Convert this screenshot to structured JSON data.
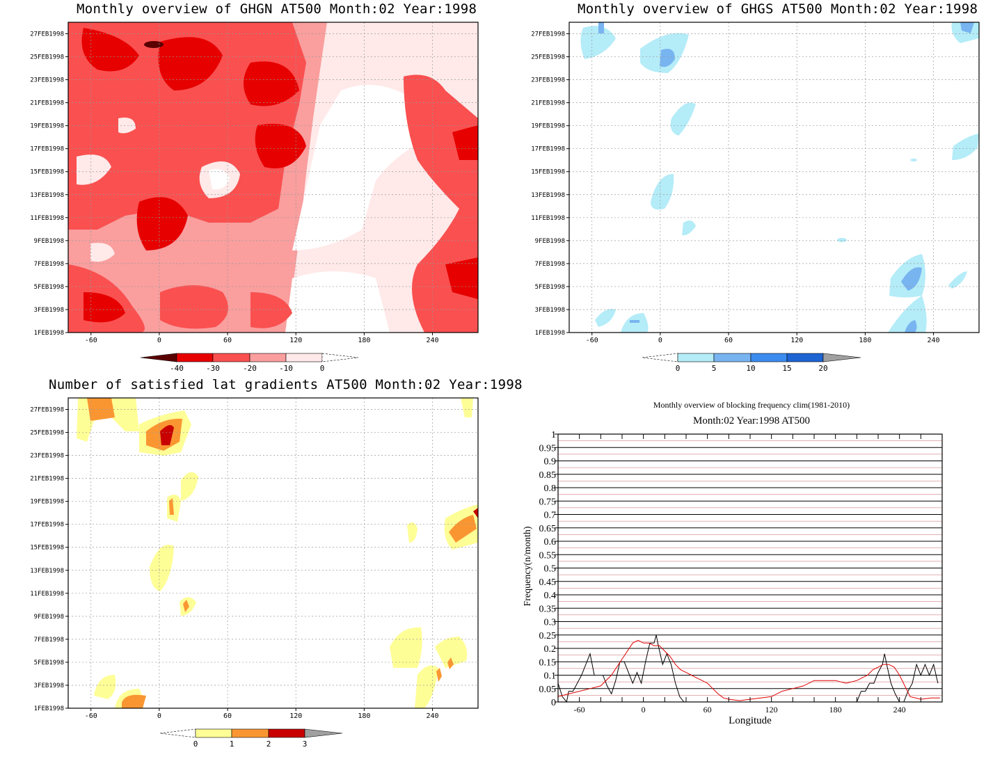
{
  "charts": {
    "ghgn": {
      "title": "Monthly overview of GHGN AT500 Month:02 Year:1998",
      "ytick_labels": [
        "1FEB1998",
        "3FEB1998",
        "5FEB1998",
        "7FEB1998",
        "9FEB1998",
        "11FEB1998",
        "13FEB1998",
        "15FEB1998",
        "17FEB1998",
        "19FEB1998",
        "21FEB1998",
        "23FEB1998",
        "25FEB1998",
        "27FEB1998"
      ],
      "xtick_labels": [
        "-60",
        "0",
        "60",
        "120",
        "180",
        "240"
      ],
      "colorbar_labels": [
        "-40",
        "-30",
        "-20",
        "-10",
        "0"
      ]
    },
    "ghgs": {
      "title": "Monthly overview of GHGS AT500 Month:02 Year:1998",
      "ytick_labels": [
        "1FEB1998",
        "3FEB1998",
        "5FEB1998",
        "7FEB1998",
        "9FEB1998",
        "11FEB1998",
        "13FEB1998",
        "15FEB1998",
        "17FEB1998",
        "19FEB1998",
        "21FEB1998",
        "23FEB1998",
        "25FEB1998",
        "27FEB1998"
      ],
      "xtick_labels": [
        "-60",
        "0",
        "60",
        "120",
        "180",
        "240"
      ],
      "colorbar_labels": [
        "0",
        "5",
        "10",
        "15",
        "20"
      ]
    },
    "latgrad": {
      "title": "Number of satisfied lat gradients AT500 Month:02 Year:1998",
      "ytick_labels": [
        "1FEB1998",
        "3FEB1998",
        "5FEB1998",
        "7FEB1998",
        "9FEB1998",
        "11FEB1998",
        "13FEB1998",
        "15FEB1998",
        "17FEB1998",
        "19FEB1998",
        "21FEB1998",
        "23FEB1998",
        "25FEB1998",
        "27FEB1998"
      ],
      "xtick_labels": [
        "-60",
        "0",
        "60",
        "120",
        "180",
        "240"
      ],
      "colorbar_labels": [
        "0",
        "1",
        "2",
        "3"
      ]
    },
    "freq": {
      "title": "Monthly overview of blocking frequency clim(1981-2010)",
      "subtitle": "Month:02 Year:1998  AT500",
      "xlabel": "Longitude",
      "ylabel": "Frequency(n/month)",
      "xtick_labels": [
        "-60",
        "0",
        "60",
        "120",
        "180",
        "240"
      ],
      "ytick_labels": [
        "0",
        "0.05",
        "0.1",
        "0.15",
        "0.2",
        "0.25",
        "0.3",
        "0.35",
        "0.4",
        "0.45",
        "0.5",
        "0.55",
        "0.6",
        "0.65",
        "0.7",
        "0.75",
        "0.8",
        "0.85",
        "0.9",
        "0.95",
        "1"
      ]
    }
  },
  "chart_data": [
    {
      "type": "heatmap",
      "title": "Monthly overview of GHGN AT500 Month:02 Year:1998",
      "x_axis": "longitude",
      "xlim": [
        -80,
        280
      ],
      "y_axis": "date",
      "ylim": [
        "1FEB1998",
        "28FEB1998"
      ],
      "levels": [
        -40,
        -30,
        -20,
        -10,
        0
      ],
      "colors": [
        "#5a0000",
        "#e60000",
        "#fa5050",
        "#fa9e9e",
        "#ffe9e9",
        "#ffffff"
      ],
      "description_values": "mostly -30 to -10 west of 150E, -10 to 0 between 150E and 230E"
    },
    {
      "type": "heatmap",
      "title": "Monthly overview of GHGS AT500 Month:02 Year:1998",
      "x_axis": "longitude",
      "xlim": [
        -80,
        280
      ],
      "y_axis": "date",
      "ylim": [
        "1FEB1998",
        "28FEB1998"
      ],
      "levels": [
        0,
        5,
        10,
        15,
        20
      ],
      "colors": [
        "#b4ecf8",
        "#78b4f0",
        "#3c8cf0",
        "#1e64d2",
        "#a0a0a0"
      ]
    },
    {
      "type": "heatmap",
      "title": "Number of satisfied lat gradients AT500 Month:02 Year:1998",
      "x_axis": "longitude",
      "xlim": [
        -80,
        280
      ],
      "y_axis": "date",
      "ylim": [
        "1FEB1998",
        "28FEB1998"
      ],
      "levels": [
        0,
        1,
        2,
        3
      ],
      "colors": [
        "#fefe96",
        "#fa9632",
        "#c80000",
        "#a0a0a0"
      ]
    },
    {
      "type": "line",
      "title": "Monthly overview of blocking frequency clim(1981-2010)",
      "subtitle": "Month:02 Year:1998  AT500",
      "xlabel": "Longitude",
      "ylabel": "Frequency(n/month)",
      "xlim": [
        -80,
        280
      ],
      "ylim": [
        0,
        1
      ],
      "grid": true,
      "series": [
        {
          "color": "#000000",
          "x": [
            -80,
            -76,
            -72,
            -70,
            -66,
            -62,
            -58,
            -54,
            -50,
            -46,
            -42,
            -38,
            -34,
            -30,
            -26,
            -22,
            -18,
            -14,
            -10,
            -6,
            -2,
            2,
            6,
            10,
            12,
            14,
            18,
            22,
            26,
            30,
            34,
            38,
            200,
            204,
            208,
            212,
            216,
            220,
            224,
            226,
            228,
            232,
            236,
            240,
            244,
            248,
            252,
            256,
            260,
            264,
            268,
            272,
            276
          ],
          "y": [
            0.07,
            0.02,
            0.0,
            0.04,
            0.04,
            0.07,
            0.1,
            0.14,
            0.18,
            0.1,
            0.1,
            0.1,
            0.06,
            0.03,
            0.08,
            0.15,
            0.15,
            0.11,
            0.07,
            0.11,
            0.07,
            0.15,
            0.22,
            0.22,
            0.25,
            0.21,
            0.14,
            0.18,
            0.14,
            0.07,
            0.02,
            0.0,
            0.0,
            0.04,
            0.04,
            0.07,
            0.07,
            0.11,
            0.14,
            0.18,
            0.14,
            0.07,
            0.03,
            0.0,
            0.0,
            0.04,
            0.07,
            0.14,
            0.1,
            0.14,
            0.1,
            0.14,
            0.07
          ]
        },
        {
          "color": "#e00000",
          "x": [
            -80,
            -70,
            -60,
            -50,
            -40,
            -30,
            -20,
            -10,
            -5,
            0,
            5,
            10,
            15,
            20,
            25,
            30,
            35,
            40,
            45,
            50,
            55,
            60,
            65,
            70,
            75,
            80,
            90,
            100,
            110,
            120,
            130,
            140,
            150,
            160,
            170,
            180,
            190,
            200,
            210,
            215,
            220,
            225,
            230,
            235,
            240,
            245,
            250,
            260,
            270,
            278
          ],
          "y": [
            0.02,
            0.03,
            0.04,
            0.05,
            0.06,
            0.1,
            0.16,
            0.22,
            0.23,
            0.22,
            0.22,
            0.21,
            0.21,
            0.19,
            0.17,
            0.14,
            0.12,
            0.11,
            0.1,
            0.09,
            0.08,
            0.07,
            0.05,
            0.03,
            0.015,
            0.01,
            0.005,
            0.01,
            0.015,
            0.02,
            0.04,
            0.05,
            0.06,
            0.08,
            0.08,
            0.08,
            0.07,
            0.08,
            0.1,
            0.12,
            0.13,
            0.14,
            0.14,
            0.13,
            0.1,
            0.06,
            0.02,
            0.01,
            0.015,
            0.015
          ]
        }
      ]
    }
  ]
}
